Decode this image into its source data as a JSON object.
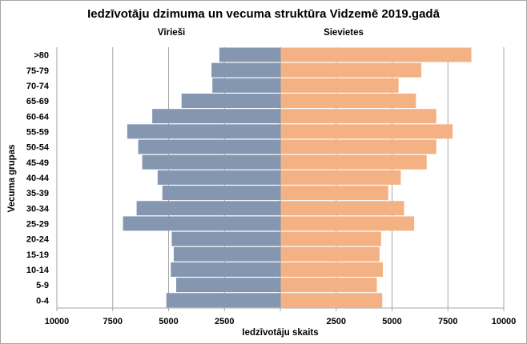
{
  "chart_data": {
    "type": "bar",
    "orientation": "horizontal-pyramid",
    "title": "Iedzīvotāju dzimuma un vecuma struktūra Vidzemē 2019.gadā",
    "xlabel": "Iedzīvotāju skaits",
    "ylabel": "Vecuma grupas",
    "xlim": [
      -10000,
      10000
    ],
    "x_ticks": [
      "10000",
      "7500",
      "5000",
      "2500",
      "2500",
      "5000",
      "7500",
      "10000"
    ],
    "x_tick_values": [
      -10000,
      -7500,
      -5000,
      -2500,
      2500,
      5000,
      7500,
      10000
    ],
    "grid": "vertical",
    "categories": [
      ">80",
      "75-79",
      "70-74",
      "65-69",
      "60-64",
      "55-59",
      "50-54",
      "45-49",
      "40-44",
      "35-39",
      "30-34",
      "25-29",
      "20-24",
      "15-19",
      "10-14",
      "5-9",
      "0-4"
    ],
    "series": [
      {
        "name": "Vīrieši",
        "color": "#8496b0",
        "side": "left",
        "values": [
          2730,
          3080,
          3040,
          4420,
          5730,
          6850,
          6360,
          6180,
          5490,
          5280,
          6430,
          7040,
          4860,
          4770,
          4900,
          4660,
          5100
        ]
      },
      {
        "name": "Sievietes",
        "color": "#f4b183",
        "side": "right",
        "values": [
          8550,
          6310,
          5290,
          6070,
          6980,
          7710,
          6980,
          6550,
          5390,
          4830,
          5540,
          5990,
          4510,
          4440,
          4590,
          4320,
          4560
        ]
      }
    ]
  }
}
